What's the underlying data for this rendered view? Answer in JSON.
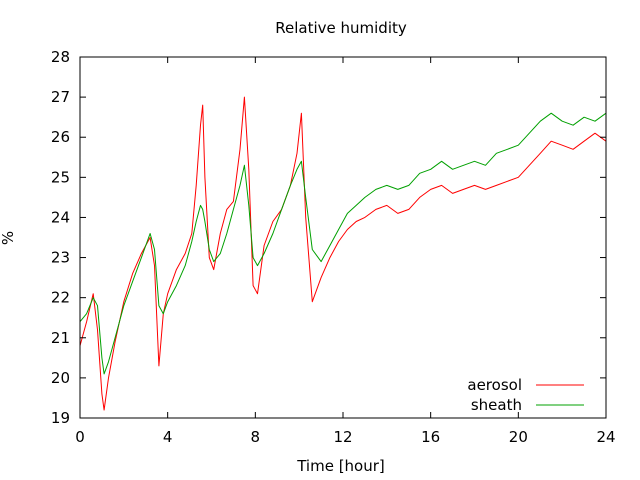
{
  "chart_data": {
    "type": "line",
    "title": "Relative humidity",
    "xlabel": "Time [hour]",
    "ylabel": "%",
    "xlim": [
      0,
      24
    ],
    "ylim": [
      19,
      28
    ],
    "xticks": [
      0,
      4,
      8,
      12,
      16,
      20,
      24
    ],
    "yticks": [
      19,
      20,
      21,
      22,
      23,
      24,
      25,
      26,
      27,
      28
    ],
    "grid": false,
    "legend_position": "bottom-right",
    "series": [
      {
        "name": "aerosol",
        "color": "#ff0000",
        "x": [
          0,
          0.3,
          0.6,
          0.8,
          1.0,
          1.1,
          1.3,
          1.6,
          2.0,
          2.4,
          2.8,
          3.2,
          3.4,
          3.6,
          3.8,
          4.0,
          4.4,
          4.8,
          5.1,
          5.3,
          5.5,
          5.6,
          5.7,
          5.9,
          6.1,
          6.4,
          6.7,
          7.0,
          7.3,
          7.5,
          7.7,
          7.9,
          8.1,
          8.4,
          8.8,
          9.2,
          9.6,
          9.9,
          10.1,
          10.3,
          10.6,
          11.0,
          11.4,
          11.8,
          12.2,
          12.6,
          13.0,
          13.5,
          14.0,
          14.5,
          15.0,
          15.5,
          16.0,
          16.5,
          17.0,
          17.5,
          18.0,
          18.5,
          19.0,
          19.5,
          20.0,
          20.5,
          21.0,
          21.5,
          22.0,
          22.5,
          23.0,
          23.5,
          24.0
        ],
        "y": [
          20.8,
          21.4,
          22.1,
          21.2,
          19.6,
          19.2,
          20.0,
          20.9,
          21.9,
          22.6,
          23.1,
          23.5,
          22.8,
          20.3,
          21.6,
          22.1,
          22.7,
          23.1,
          23.6,
          24.8,
          26.3,
          26.8,
          25.0,
          23.0,
          22.7,
          23.6,
          24.2,
          24.4,
          25.7,
          27.0,
          25.2,
          22.3,
          22.1,
          23.3,
          23.9,
          24.2,
          24.8,
          25.6,
          26.6,
          24.0,
          21.9,
          22.5,
          23.0,
          23.4,
          23.7,
          23.9,
          24.0,
          24.2,
          24.3,
          24.1,
          24.2,
          24.5,
          24.7,
          24.8,
          24.6,
          24.7,
          24.8,
          24.7,
          24.8,
          24.9,
          25.0,
          25.3,
          25.6,
          25.9,
          25.8,
          25.7,
          25.9,
          26.1,
          25.9
        ]
      },
      {
        "name": "sheath",
        "color": "#00a000",
        "x": [
          0,
          0.3,
          0.6,
          0.8,
          1.0,
          1.1,
          1.3,
          1.6,
          2.0,
          2.4,
          2.8,
          3.2,
          3.4,
          3.6,
          3.8,
          4.0,
          4.4,
          4.8,
          5.1,
          5.3,
          5.5,
          5.6,
          5.7,
          5.9,
          6.1,
          6.4,
          6.7,
          7.0,
          7.3,
          7.5,
          7.7,
          7.9,
          8.1,
          8.4,
          8.8,
          9.2,
          9.6,
          9.9,
          10.1,
          10.3,
          10.6,
          11.0,
          11.4,
          11.8,
          12.2,
          12.6,
          13.0,
          13.5,
          14.0,
          14.5,
          15.0,
          15.5,
          16.0,
          16.5,
          17.0,
          17.5,
          18.0,
          18.5,
          19.0,
          19.5,
          20.0,
          20.5,
          21.0,
          21.5,
          22.0,
          22.5,
          23.0,
          23.5,
          24.0
        ],
        "y": [
          21.4,
          21.6,
          22.0,
          21.8,
          20.5,
          20.1,
          20.4,
          21.0,
          21.8,
          22.4,
          23.0,
          23.6,
          23.2,
          21.8,
          21.6,
          21.9,
          22.3,
          22.8,
          23.4,
          23.9,
          24.3,
          24.2,
          23.9,
          23.2,
          22.9,
          23.1,
          23.6,
          24.2,
          24.8,
          25.3,
          24.3,
          23.0,
          22.8,
          23.1,
          23.6,
          24.2,
          24.8,
          25.2,
          25.4,
          24.5,
          23.2,
          22.9,
          23.3,
          23.7,
          24.1,
          24.3,
          24.5,
          24.7,
          24.8,
          24.7,
          24.8,
          25.1,
          25.2,
          25.4,
          25.2,
          25.3,
          25.4,
          25.3,
          25.6,
          25.7,
          25.8,
          26.1,
          26.4,
          26.6,
          26.4,
          26.3,
          26.5,
          26.4,
          26.6
        ]
      }
    ]
  }
}
